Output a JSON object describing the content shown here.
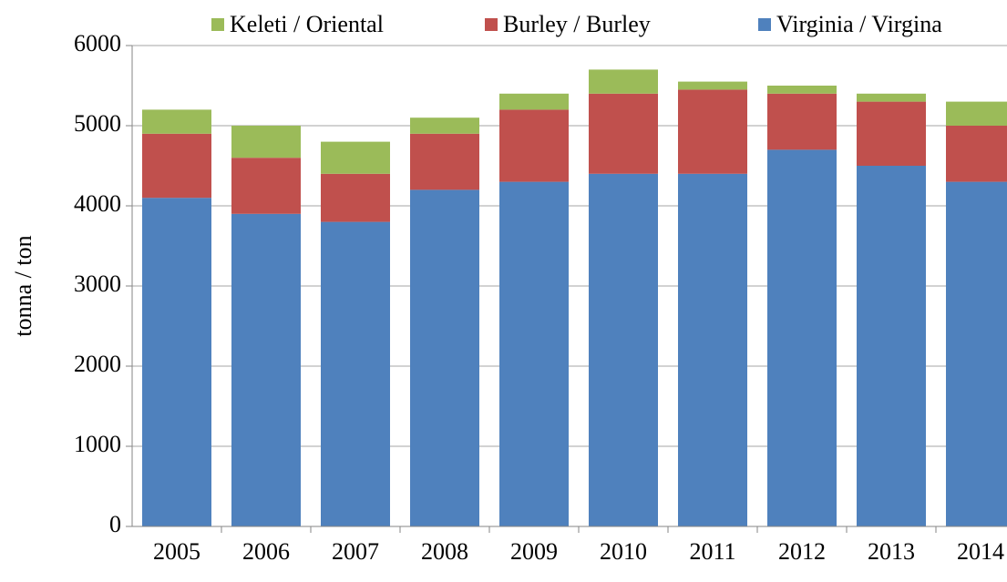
{
  "chart_data": {
    "type": "stacked_bar",
    "y_label": "tonna / ton",
    "categories": [
      "2005",
      "2006",
      "2007",
      "2008",
      "2009",
      "2010",
      "2011",
      "2012",
      "2013",
      "2014"
    ],
    "series": [
      {
        "name": "Virginia / Virgina",
        "color": "#4f81bd",
        "values": [
          4100,
          3900,
          3800,
          4200,
          4300,
          4400,
          4400,
          4700,
          4500,
          4300
        ]
      },
      {
        "name": "Burley / Burley",
        "color": "#c0504d",
        "values": [
          800,
          700,
          600,
          700,
          900,
          1000,
          1050,
          700,
          800,
          700
        ]
      },
      {
        "name": "Keleti / Oriental",
        "color": "#9bbb59",
        "values": [
          300,
          400,
          400,
          200,
          200,
          300,
          100,
          100,
          100,
          300
        ]
      }
    ],
    "ylim": [
      0,
      6000
    ],
    "yticks": [
      0,
      1000,
      2000,
      3000,
      4000,
      5000,
      6000
    ],
    "grid": true,
    "legend": "top"
  }
}
